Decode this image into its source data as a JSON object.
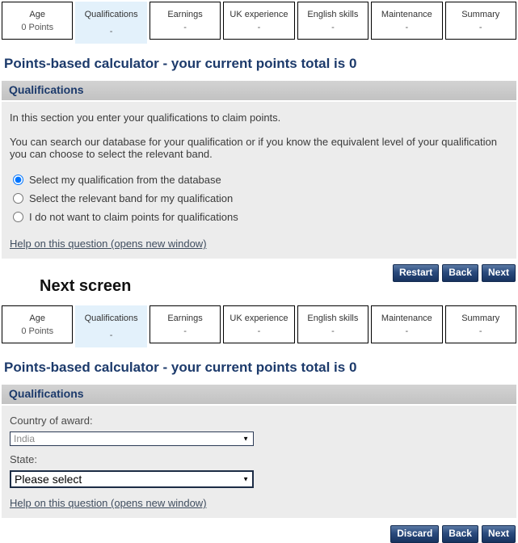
{
  "colors": {
    "accent_navy": "#1c3a6b",
    "active_tab_blue": "#e3f1fb",
    "panel_grey": "#ececec",
    "section_header_grey": "#c9c9c9",
    "button_navy": "#1d3b69",
    "link_slate": "#3f4d5f"
  },
  "icons": {
    "dropdown_arrow": "▼"
  },
  "tabs": [
    {
      "label": "Age",
      "points": "0 Points"
    },
    {
      "label": "Qualifications",
      "points": "-"
    },
    {
      "label": "Earnings",
      "points": "-"
    },
    {
      "label": "UK experience",
      "points": "-"
    },
    {
      "label": "English skills",
      "points": "-"
    },
    {
      "label": "Maintenance",
      "points": "-"
    },
    {
      "label": "Summary",
      "points": "-"
    }
  ],
  "screen1": {
    "heading": "Points-based calculator - your current points total is 0",
    "section_title": "Qualifications",
    "intro1": "In this section you enter your qualifications to claim points.",
    "intro2": "You can search our database for your qualification or if you know the equivalent level of your qualification you can choose to select the relevant band.",
    "options": [
      {
        "label": "Select my qualification from the database",
        "selected": true
      },
      {
        "label": "Select the relevant band for my qualification",
        "selected": false
      },
      {
        "label": "I do not want to claim points for qualifications",
        "selected": false
      }
    ],
    "help_link": "Help on this question (opens new window)",
    "buttons": [
      "Restart",
      "Back",
      "Next"
    ]
  },
  "divider_label": "Next screen",
  "screen2": {
    "heading": "Points-based calculator - your current points total is 0",
    "section_title": "Qualifications",
    "country_label": "Country of award:",
    "country_value": "India",
    "state_label": "State:",
    "state_value": "Please select",
    "help_link": "Help on this question (opens new window)",
    "buttons": [
      "Discard",
      "Back",
      "Next"
    ]
  }
}
